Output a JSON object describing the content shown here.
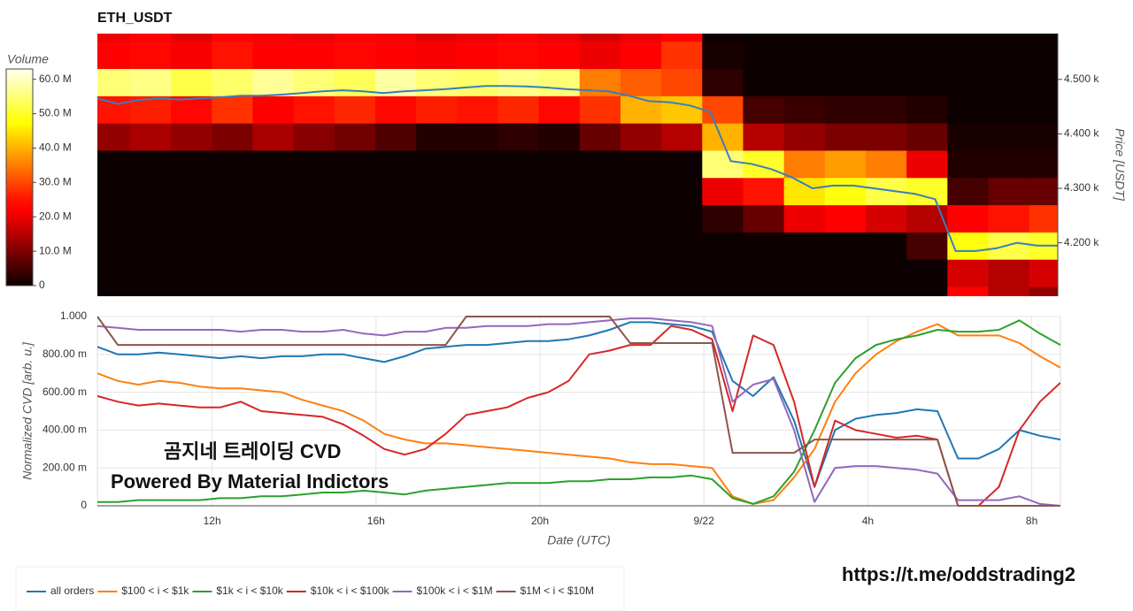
{
  "chart_data": [
    {
      "type": "heatmap",
      "title": "ETH_USDT",
      "colorbar_title": "Volume",
      "ylabel": "Price [USDT]",
      "xlim": [
        9.2,
        32.7
      ],
      "ylim": [
        4102,
        4584
      ],
      "yticks": [
        {
          "value": 4200,
          "label": "4.200 k"
        },
        {
          "value": 4300,
          "label": "4.300 k"
        },
        {
          "value": 4400,
          "label": "4.400 k"
        },
        {
          "value": 4500,
          "label": "4.500 k"
        }
      ],
      "zlim": [
        0,
        63
      ],
      "zticks": [
        0,
        {
          "value": 10,
          "label": "10.0 M"
        },
        {
          "value": 20,
          "label": "20.0 M"
        },
        {
          "value": 30,
          "label": "30.0 M"
        },
        {
          "value": 40,
          "label": "40.0 M"
        },
        {
          "value": 50,
          "label": "50.0 M"
        },
        {
          "value": 60,
          "label": "60.0 M"
        }
      ],
      "x_bins": [
        9,
        10,
        11,
        12,
        13,
        14,
        15,
        16,
        17,
        18,
        19,
        20,
        21,
        22,
        23,
        24,
        25,
        26,
        27,
        28,
        29,
        30,
        31,
        32,
        33
      ],
      "y_bins": [
        4070,
        4120,
        4170,
        4220,
        4270,
        4320,
        4370,
        4420,
        4470,
        4520,
        4570,
        4620
      ],
      "z": [
        [
          0,
          0,
          0,
          0,
          0,
          0,
          0,
          0,
          0,
          0,
          0,
          0,
          0,
          0,
          0,
          0,
          0,
          0,
          0,
          0,
          0,
          22,
          15,
          12
        ],
        [
          0,
          0,
          0,
          0,
          0,
          0,
          0,
          0,
          0,
          0,
          0,
          0,
          0,
          0,
          0,
          0,
          0,
          0,
          0,
          0,
          0,
          18,
          15,
          18
        ],
        [
          0,
          0,
          0,
          0,
          0,
          0,
          0,
          0,
          0,
          0,
          0,
          0,
          0,
          0,
          0,
          0,
          0,
          0,
          0,
          0,
          5,
          48,
          52,
          50
        ],
        [
          0,
          0,
          0,
          0,
          0,
          0,
          0,
          0,
          0,
          0,
          0,
          0,
          0,
          0,
          0,
          3,
          8,
          20,
          22,
          18,
          15,
          22,
          25,
          28
        ],
        [
          0,
          0,
          0,
          0,
          0,
          0,
          0,
          0,
          0,
          0,
          0,
          0,
          0,
          0,
          0,
          20,
          25,
          45,
          48,
          52,
          50,
          5,
          8,
          8
        ],
        [
          0,
          0,
          0,
          0,
          0,
          0,
          0,
          0,
          0,
          0,
          0,
          0,
          0,
          0,
          0,
          55,
          50,
          35,
          38,
          35,
          20,
          2,
          2,
          2
        ],
        [
          12,
          14,
          12,
          10,
          14,
          11,
          9,
          6,
          2,
          2,
          3,
          2,
          8,
          12,
          15,
          40,
          15,
          12,
          10,
          10,
          8,
          1,
          1,
          1
        ],
        [
          25,
          26,
          24,
          28,
          22,
          25,
          27,
          24,
          26,
          25,
          27,
          24,
          28,
          40,
          42,
          30,
          5,
          4,
          3,
          3,
          2,
          0,
          0,
          0
        ],
        [
          55,
          56,
          52,
          54,
          57,
          55,
          53,
          58,
          55,
          54,
          56,
          55,
          35,
          32,
          30,
          3,
          0,
          0,
          0,
          0,
          0,
          0,
          0,
          0
        ],
        [
          22,
          24,
          21,
          25,
          23,
          22,
          24,
          23,
          21,
          22,
          24,
          22,
          20,
          22,
          28,
          1,
          0,
          0,
          0,
          0,
          0,
          0,
          0,
          0
        ],
        [
          20,
          22,
          19,
          23,
          21,
          20,
          22,
          21,
          19,
          20,
          22,
          20,
          18,
          20,
          22,
          0,
          0,
          0,
          0,
          0,
          0,
          0,
          0,
          0
        ]
      ],
      "price": {
        "color": "#3a7dbf",
        "x": [
          9.2,
          9.7,
          10.2,
          10.7,
          11.2,
          11.7,
          12.2,
          12.7,
          13.2,
          13.7,
          14.2,
          14.7,
          15.2,
          15.7,
          16.2,
          16.7,
          17.2,
          17.7,
          18.2,
          18.7,
          19.2,
          19.7,
          20.2,
          20.7,
          21.2,
          21.7,
          22.2,
          22.7,
          23.2,
          23.7,
          24.2,
          24.7,
          25.2,
          25.7,
          26.2,
          26.7,
          27.2,
          27.7,
          28.2,
          28.7,
          29.2,
          29.7,
          30.2,
          30.7,
          31.2,
          31.7,
          32.2,
          32.7
        ],
        "values": [
          4465,
          4455,
          4462,
          4465,
          4463,
          4465,
          4467,
          4470,
          4470,
          4472,
          4475,
          4478,
          4480,
          4478,
          4475,
          4478,
          4480,
          4482,
          4485,
          4488,
          4488,
          4487,
          4485,
          4482,
          4480,
          4478,
          4470,
          4460,
          4458,
          4452,
          4440,
          4350,
          4345,
          4335,
          4320,
          4300,
          4305,
          4305,
          4300,
          4295,
          4290,
          4280,
          4185,
          4185,
          4190,
          4200,
          4195,
          4195
        ]
      }
    },
    {
      "type": "line",
      "xlabel": "Date (UTC)",
      "ylabel": "Normalized CVD [arb. u.]",
      "grid": true,
      "legend": "bottom",
      "xlim": [
        9.2,
        32.7
      ],
      "xticks": [
        {
          "value": 12,
          "label": "12h"
        },
        {
          "value": 16,
          "label": "16h"
        },
        {
          "value": 20,
          "label": "20h"
        },
        {
          "value": 24,
          "label": "9/22"
        },
        {
          "value": 28,
          "label": "4h"
        },
        {
          "value": 32,
          "label": "8h"
        }
      ],
      "ylim": [
        0,
        1
      ],
      "yticks": [
        0,
        {
          "value": 0.2,
          "label": "200.00 m"
        },
        {
          "value": 0.4,
          "label": "400.00 m"
        },
        {
          "value": 0.6,
          "label": "600.00 m"
        },
        {
          "value": 0.8,
          "label": "800.00 m"
        },
        {
          "value": 1,
          "label": "1.000"
        }
      ],
      "x": [
        9.2,
        9.7,
        10.2,
        10.7,
        11.2,
        11.7,
        12.2,
        12.7,
        13.2,
        13.7,
        14.2,
        14.7,
        15.2,
        15.7,
        16.2,
        16.7,
        17.2,
        17.7,
        18.2,
        18.7,
        19.2,
        19.7,
        20.2,
        20.7,
        21.2,
        21.7,
        22.2,
        22.7,
        23.2,
        23.7,
        24.2,
        24.7,
        25.2,
        25.7,
        26.2,
        26.7,
        27.2,
        27.7,
        28.2,
        28.7,
        29.2,
        29.7,
        30.2,
        30.7,
        31.2,
        31.7,
        32.2,
        32.7
      ],
      "series": [
        {
          "name": "all orders",
          "color": "#1f77b4",
          "values": [
            0.84,
            0.8,
            0.8,
            0.81,
            0.8,
            0.79,
            0.78,
            0.79,
            0.78,
            0.79,
            0.79,
            0.8,
            0.8,
            0.78,
            0.76,
            0.79,
            0.83,
            0.84,
            0.85,
            0.85,
            0.86,
            0.87,
            0.87,
            0.88,
            0.9,
            0.93,
            0.97,
            0.97,
            0.96,
            0.95,
            0.92,
            0.66,
            0.58,
            0.68,
            0.45,
            0.1,
            0.4,
            0.46,
            0.48,
            0.49,
            0.51,
            0.5,
            0.25,
            0.25,
            0.3,
            0.4,
            0.37,
            0.35
          ]
        },
        {
          "name": "$100 < i < $1k",
          "color": "#ff7f0e",
          "values": [
            0.7,
            0.66,
            0.64,
            0.66,
            0.65,
            0.63,
            0.62,
            0.62,
            0.61,
            0.6,
            0.56,
            0.53,
            0.5,
            0.45,
            0.38,
            0.35,
            0.33,
            0.33,
            0.32,
            0.31,
            0.3,
            0.29,
            0.28,
            0.27,
            0.26,
            0.25,
            0.23,
            0.22,
            0.22,
            0.21,
            0.2,
            0.05,
            0.01,
            0.03,
            0.15,
            0.3,
            0.55,
            0.7,
            0.8,
            0.87,
            0.92,
            0.96,
            0.9,
            0.9,
            0.9,
            0.86,
            0.79,
            0.73
          ]
        },
        {
          "name": "$1k < i < $10k",
          "color": "#2ca02c",
          "values": [
            0.02,
            0.02,
            0.03,
            0.03,
            0.03,
            0.03,
            0.04,
            0.04,
            0.05,
            0.05,
            0.06,
            0.07,
            0.07,
            0.08,
            0.07,
            0.06,
            0.08,
            0.09,
            0.1,
            0.11,
            0.12,
            0.12,
            0.12,
            0.13,
            0.13,
            0.14,
            0.14,
            0.15,
            0.15,
            0.16,
            0.14,
            0.04,
            0.01,
            0.05,
            0.18,
            0.4,
            0.65,
            0.78,
            0.85,
            0.88,
            0.9,
            0.93,
            0.92,
            0.92,
            0.93,
            0.98,
            0.91,
            0.85
          ]
        },
        {
          "name": "$10k < i < $100k",
          "color": "#d62728",
          "values": [
            0.58,
            0.55,
            0.53,
            0.54,
            0.53,
            0.52,
            0.52,
            0.55,
            0.5,
            0.49,
            0.48,
            0.47,
            0.43,
            0.37,
            0.3,
            0.27,
            0.3,
            0.38,
            0.48,
            0.5,
            0.52,
            0.57,
            0.6,
            0.66,
            0.8,
            0.82,
            0.85,
            0.85,
            0.95,
            0.93,
            0.88,
            0.5,
            0.9,
            0.85,
            0.55,
            0.1,
            0.45,
            0.4,
            0.38,
            0.36,
            0.37,
            0.35,
            0.0,
            0.0,
            0.1,
            0.4,
            0.55,
            0.65
          ]
        },
        {
          "name": "$100k < i < $1M",
          "color": "#9467bd",
          "values": [
            0.95,
            0.94,
            0.93,
            0.93,
            0.93,
            0.93,
            0.93,
            0.92,
            0.93,
            0.93,
            0.92,
            0.92,
            0.93,
            0.91,
            0.9,
            0.92,
            0.92,
            0.94,
            0.94,
            0.95,
            0.95,
            0.95,
            0.96,
            0.96,
            0.97,
            0.98,
            0.99,
            0.99,
            0.98,
            0.97,
            0.95,
            0.55,
            0.64,
            0.67,
            0.4,
            0.02,
            0.2,
            0.21,
            0.21,
            0.2,
            0.19,
            0.17,
            0.03,
            0.03,
            0.03,
            0.05,
            0.01,
            0.0
          ]
        },
        {
          "name": "$1M < i < $10M",
          "color": "#8c564b",
          "values": [
            1.0,
            0.85,
            0.85,
            0.85,
            0.85,
            0.85,
            0.85,
            0.85,
            0.85,
            0.85,
            0.85,
            0.85,
            0.85,
            0.85,
            0.85,
            0.85,
            0.85,
            0.85,
            1.0,
            1.0,
            1.0,
            1.0,
            1.0,
            1.0,
            1.0,
            1.0,
            0.86,
            0.86,
            0.86,
            0.86,
            0.86,
            0.28,
            0.28,
            0.28,
            0.28,
            0.35,
            0.35,
            0.35,
            0.35,
            0.35,
            0.35,
            0.35,
            0.0,
            0.0,
            0.0,
            0.0,
            0.0,
            0.0
          ]
        }
      ],
      "annotations": [
        "곰지네 트레이딩 CVD",
        "Powered By Material Indictors",
        "https://t.me/oddstrading2"
      ]
    }
  ]
}
